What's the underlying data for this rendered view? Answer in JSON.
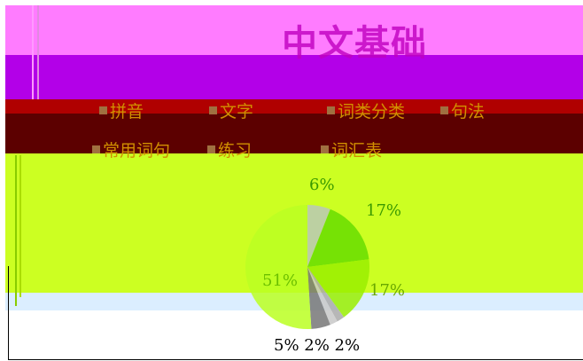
{
  "title": "中文基础",
  "nav": {
    "row1": [
      {
        "label": "拼音"
      },
      {
        "label": "文字"
      },
      {
        "label": "词类分类"
      },
      {
        "label": "句法"
      }
    ],
    "row2": [
      {
        "label": "常用词句"
      },
      {
        "label": "练习"
      },
      {
        "label": "词汇表"
      }
    ]
  },
  "chart_data": {
    "type": "pie",
    "values": [
      6,
      17,
      17,
      2,
      2,
      5,
      51
    ],
    "labels": [
      "6%",
      "17%",
      "17%",
      "2%",
      "2%",
      "5%",
      "51%"
    ],
    "colors": [
      "#b8c8b8",
      "#66dd00",
      "#99ee00",
      "#aaaaaa",
      "#c8c8c8",
      "#777777",
      "#bbff22"
    ],
    "bottom_labels": "5% 2% 2%"
  }
}
